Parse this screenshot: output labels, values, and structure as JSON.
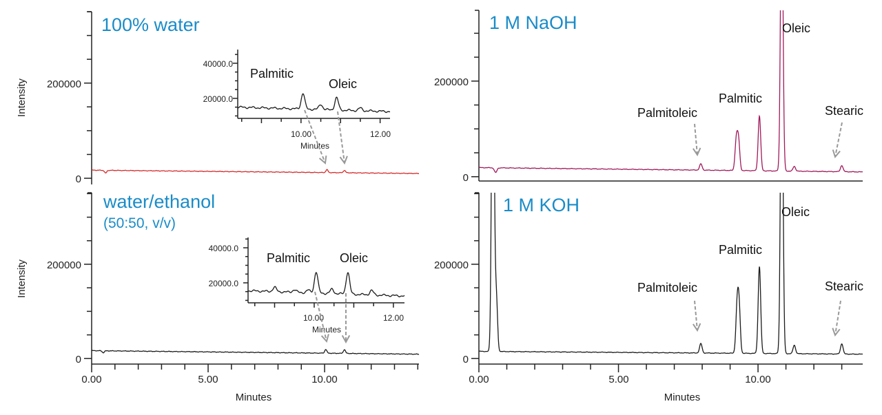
{
  "colors": {
    "title": "#1a8cc8",
    "water_trace": "#d42a2a",
    "naoh_trace": "#a0185a",
    "koh_trace": "#1a1a1a",
    "ethanol_trace": "#1a1a1a",
    "arrow": "#999999"
  },
  "chart_data": [
    {
      "id": "water",
      "type": "line",
      "title": "100% water",
      "ylabel": "Intensity",
      "xlim": [
        0,
        14.05
      ],
      "ylim": [
        -13000,
        350000
      ],
      "y_tick_labels": [
        "0",
        "200000"
      ],
      "y_tick_values": [
        0,
        200000
      ],
      "x_axis_shown": false,
      "baseline": [
        17000,
        10000
      ],
      "peaks": [
        {
          "t": 0.6,
          "h": -6000
        },
        {
          "t": 10.1,
          "h": 6000
        },
        {
          "t": 10.85,
          "h": 5000
        }
      ],
      "inset": {
        "type": "line",
        "xlabel": "Minutes",
        "xlim": [
          8.4,
          12.25
        ],
        "ylim": [
          8600,
          47800
        ],
        "y_tick_labels": [
          "20000.0",
          "40000.0"
        ],
        "x_tick_labels": [
          "10.00",
          "12.00"
        ],
        "baseline": [
          15000,
          12500
        ],
        "peaks": [
          {
            "t": 10.05,
            "h": 9000,
            "label": "Palmitic"
          },
          {
            "t": 10.5,
            "h": 3000
          },
          {
            "t": 10.9,
            "h": 7000,
            "label": "Oleic"
          },
          {
            "t": 11.5,
            "h": 1500
          }
        ],
        "labels": [
          "Palmitic",
          "Oleic"
        ]
      }
    },
    {
      "id": "naoh",
      "type": "line",
      "title": "1 M NaOH",
      "xlim": [
        0,
        13.75
      ],
      "ylim": [
        -9000,
        348000
      ],
      "y_tick_labels": [
        "0",
        "200000"
      ],
      "x_axis_shown": true,
      "baseline": [
        19000,
        10000
      ],
      "peaks": [
        {
          "t": 0.6,
          "h": -10000
        },
        {
          "t": 7.95,
          "h": 13000,
          "label": "Palmitoleic"
        },
        {
          "t": 9.22,
          "h": 62000
        },
        {
          "t": 9.3,
          "h": 62000
        },
        {
          "t": 10.05,
          "h": 115000,
          "label": "Palmitic"
        },
        {
          "t": 10.85,
          "h": 600000,
          "label": "Oleic"
        },
        {
          "t": 11.3,
          "h": 10000
        },
        {
          "t": 13.0,
          "h": 13000,
          "label": "Stearic"
        }
      ],
      "labels": [
        "Palmitoleic",
        "Palmitic",
        "Oleic",
        "Stearic"
      ]
    },
    {
      "id": "ethanol",
      "type": "line",
      "title": "water/ethanol",
      "subtitle": "(50:50, v/v)",
      "ylabel": "Intensity",
      "xlabel": "Minutes",
      "xlim": [
        0,
        14.05
      ],
      "ylim": [
        -12000,
        352000
      ],
      "y_tick_labels": [
        "0",
        "200000"
      ],
      "x_tick_labels": [
        "0.00",
        "5.00",
        "10.00"
      ],
      "x_axis_shown": true,
      "baseline": [
        16500,
        9000
      ],
      "peaks": [
        {
          "t": 0.5,
          "h": -4000
        },
        {
          "t": 10.05,
          "h": 8000
        },
        {
          "t": 10.85,
          "h": 8000
        }
      ],
      "inset": {
        "type": "line",
        "xlabel": "Minutes",
        "xlim": [
          8.33,
          12.28
        ],
        "ylim": [
          8600,
          45900
        ],
        "y_tick_labels": [
          "20000.0",
          "40000.0"
        ],
        "x_tick_labels": [
          "10.00",
          "12.00"
        ],
        "baseline": [
          15500,
          12500
        ],
        "peaks": [
          {
            "t": 9.0,
            "h": 2500
          },
          {
            "t": 9.5,
            "h": 1500
          },
          {
            "t": 9.85,
            "h": 1500
          },
          {
            "t": 10.05,
            "h": 12000,
            "label": "Palmitic"
          },
          {
            "t": 10.45,
            "h": 2500
          },
          {
            "t": 10.85,
            "h": 12500,
            "label": "Oleic"
          },
          {
            "t": 11.45,
            "h": 2500
          }
        ],
        "labels": [
          "Palmitic",
          "Oleic"
        ]
      }
    },
    {
      "id": "koh",
      "type": "line",
      "title": "1 M KOH",
      "xlabel": "Minutes",
      "xlim": [
        0,
        13.75
      ],
      "ylim": [
        -12000,
        352000
      ],
      "y_tick_labels": [
        "0",
        "200000"
      ],
      "x_tick_labels": [
        "0.00",
        "5.00",
        "10.00"
      ],
      "x_axis_shown": true,
      "baseline": [
        15000,
        9000
      ],
      "peaks": [
        {
          "t": 0.5,
          "h": 800000
        },
        {
          "t": 0.62,
          "h": 120000
        },
        {
          "t": 7.95,
          "h": 20000,
          "label": "Palmitoleic"
        },
        {
          "t": 9.25,
          "h": 95000
        },
        {
          "t": 9.32,
          "h": 95000
        },
        {
          "t": 10.05,
          "h": 185000,
          "label": "Palmitic"
        },
        {
          "t": 10.85,
          "h": 700000,
          "label": "Oleic"
        },
        {
          "t": 11.3,
          "h": 18000
        },
        {
          "t": 13.0,
          "h": 22000,
          "label": "Stearic"
        }
      ],
      "labels": [
        "Palmitoleic",
        "Palmitic",
        "Oleic",
        "Stearic"
      ]
    }
  ]
}
